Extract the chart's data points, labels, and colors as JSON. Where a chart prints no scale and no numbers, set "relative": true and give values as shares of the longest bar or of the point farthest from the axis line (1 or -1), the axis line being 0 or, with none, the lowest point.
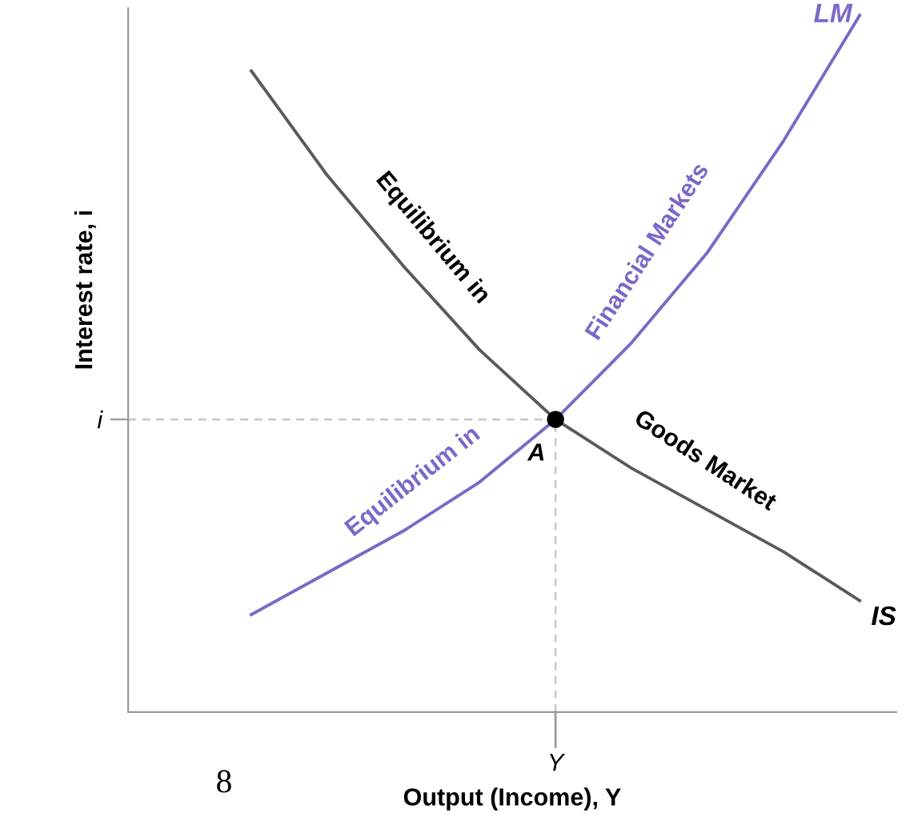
{
  "chart_data": {
    "type": "line",
    "relative": true,
    "xlabel": "Output (Income), Y",
    "ylabel": "Interest rate, i",
    "categories": [
      null,
      null,
      null,
      null,
      null,
      null,
      null,
      null,
      null
    ],
    "series": [
      {
        "name": "IS",
        "color": "#5a5a5a",
        "values": [
          0.92,
          0.77,
          0.64,
          0.52,
          0.42,
          0.35,
          0.29,
          0.23,
          0.16
        ]
      },
      {
        "name": "LM",
        "color": "#7b68c8",
        "values": [
          0.14,
          0.2,
          0.26,
          0.33,
          0.42,
          0.53,
          0.66,
          0.82,
          1.0
        ]
      }
    ],
    "ref_lines": [
      {
        "axis": "y",
        "value": 0.42,
        "label": "i",
        "color": "#c8c8c8",
        "line_style": "dashed"
      }
    ],
    "annotations": [
      "Equilibrium in",
      "Goods Market",
      "Equilibrium in",
      "Financial Markets",
      "A",
      "8",
      "Y"
    ],
    "grid": false,
    "legend": false
  }
}
